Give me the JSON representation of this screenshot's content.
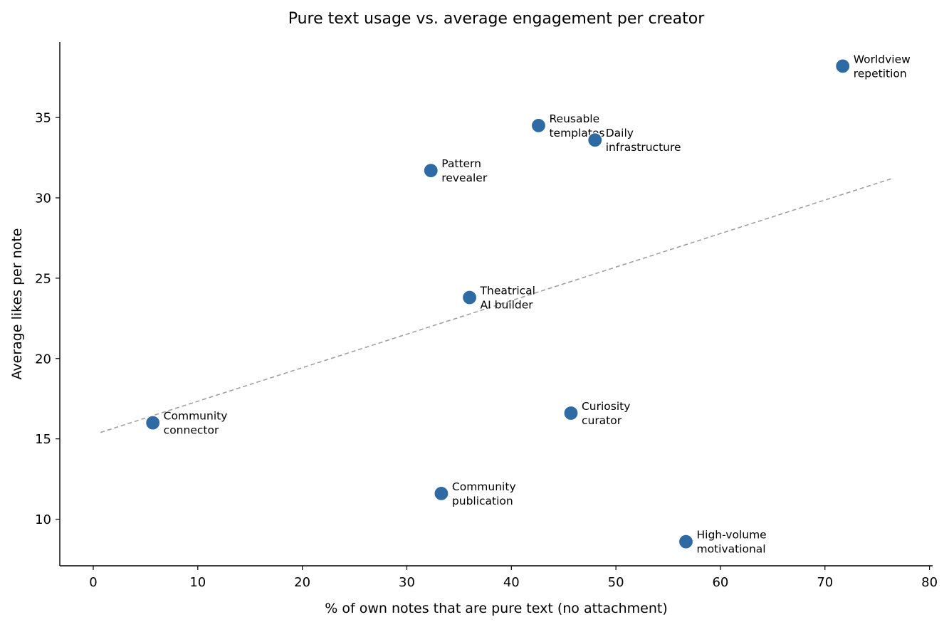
{
  "chart_data": {
    "type": "scatter",
    "title": "Pure text usage vs. average engagement per creator",
    "xlabel": "% of own notes that are pure text (no attachment)",
    "ylabel": "Average likes per note",
    "xlim": [
      -3.2,
      80.3
    ],
    "ylim": [
      7.1,
      39.7
    ],
    "xticks": [
      0,
      10,
      20,
      30,
      40,
      50,
      60,
      70,
      80
    ],
    "yticks": [
      10,
      15,
      20,
      25,
      30,
      35
    ],
    "point_color": "#2e6aa3",
    "trendline_color": "#a0a0a0",
    "trendline": {
      "x": [
        0.7,
        76.4
      ],
      "y": [
        15.4,
        31.2
      ]
    },
    "points": [
      {
        "label": [
          "Worldview",
          "repetition"
        ],
        "x": 71.7,
        "y": 38.2
      },
      {
        "label": [
          "Reusable",
          "templates"
        ],
        "x": 42.6,
        "y": 34.5
      },
      {
        "label": [
          "Daily",
          "infrastructure"
        ],
        "x": 48.0,
        "y": 33.6
      },
      {
        "label": [
          "Pattern",
          "revealer"
        ],
        "x": 32.3,
        "y": 31.7
      },
      {
        "label": [
          "Theatrical",
          "AI builder"
        ],
        "x": 36.0,
        "y": 23.8
      },
      {
        "label": [
          "Curiosity",
          "curator"
        ],
        "x": 45.7,
        "y": 16.6
      },
      {
        "label": [
          "Community",
          "connector"
        ],
        "x": 5.7,
        "y": 16.0
      },
      {
        "label": [
          "Community",
          "publication"
        ],
        "x": 33.3,
        "y": 11.6
      },
      {
        "label": [
          "High-volume",
          "motivational"
        ],
        "x": 56.7,
        "y": 8.6
      }
    ]
  }
}
